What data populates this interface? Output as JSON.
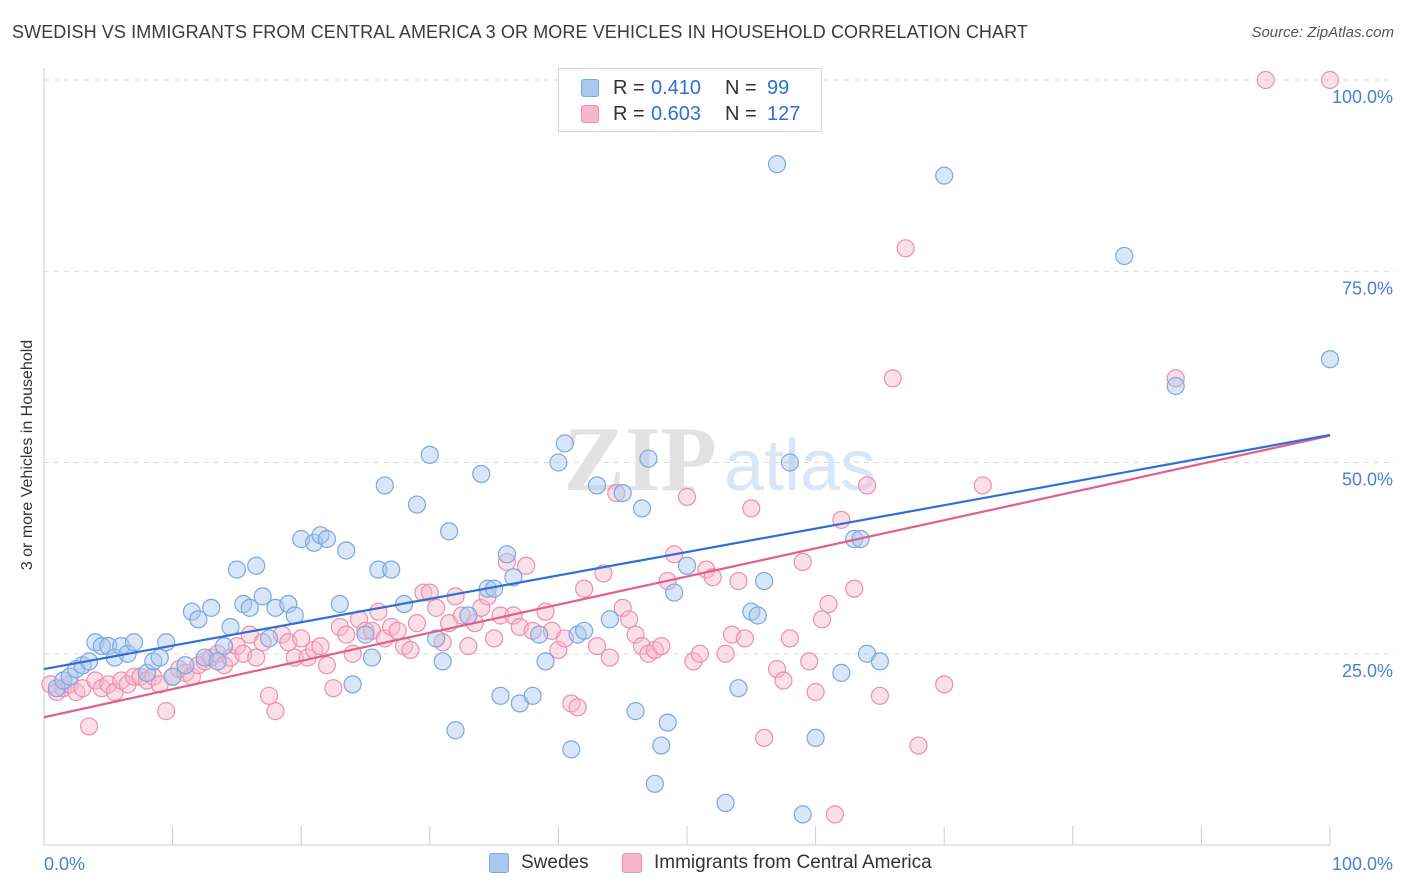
{
  "title": "SWEDISH VS IMMIGRANTS FROM CENTRAL AMERICA 3 OR MORE VEHICLES IN HOUSEHOLD CORRELATION CHART",
  "source": "Source: ZipAtlas.com",
  "watermark": {
    "zip": "ZIP",
    "atlas": "atlas"
  },
  "legend_top": [
    {
      "r_label": "R =",
      "r_value": "0.410",
      "n_label": "N =",
      "n_value": "99"
    },
    {
      "r_label": "R =",
      "r_value": "0.603",
      "n_label": "N =",
      "n_value": "127"
    }
  ],
  "legend_bottom": [
    "Swedes",
    "Immigrants from Central America"
  ],
  "colors": {
    "swedes_fill": "#a9c8f0",
    "swedes_stroke": "#7aa8e0",
    "swedes_line": "#2f6fd6",
    "central_fill": "#f6b8cc",
    "central_stroke": "#ee8fad",
    "central_line": "#e0608a",
    "tick_text": "#4a7fd4",
    "grid": "#d8d8d8"
  },
  "chart_data": {
    "type": "scatter",
    "title": "SWEDISH VS IMMIGRANTS FROM CENTRAL AMERICA 3 OR MORE VEHICLES IN HOUSEHOLD CORRELATION CHART",
    "xlabel": "",
    "ylabel": "3 or more Vehicles in Household",
    "x_tick_labels": [
      "0.0%",
      "100.0%"
    ],
    "y_tick_labels": [
      "25.0%",
      "50.0%",
      "75.0%",
      "100.0%"
    ],
    "xlim": [
      0,
      100
    ],
    "ylim": [
      0,
      100
    ],
    "grid": true,
    "legend_position": "top-center",
    "series": [
      {
        "name": "Swedes",
        "r": 0.41,
        "n": 99,
        "trend": {
          "x": [
            0,
            100
          ],
          "y": [
            23.0,
            53.6
          ]
        },
        "points": [
          [
            1,
            20.5
          ],
          [
            1.5,
            21.5
          ],
          [
            2,
            22
          ],
          [
            2.5,
            23
          ],
          [
            3,
            23.5
          ],
          [
            3.5,
            24
          ],
          [
            4,
            26.5
          ],
          [
            4.5,
            26
          ],
          [
            5,
            26
          ],
          [
            5.5,
            24.5
          ],
          [
            6,
            26
          ],
          [
            6.5,
            25
          ],
          [
            7,
            26.5
          ],
          [
            8,
            22.5
          ],
          [
            8.5,
            24
          ],
          [
            9,
            24.5
          ],
          [
            9.5,
            26.5
          ],
          [
            10,
            22
          ],
          [
            11,
            23.5
          ],
          [
            11.5,
            30.5
          ],
          [
            12,
            29.5
          ],
          [
            12.5,
            24.5
          ],
          [
            13,
            31
          ],
          [
            13.5,
            24
          ],
          [
            14,
            26
          ],
          [
            14.5,
            28.5
          ],
          [
            15,
            36
          ],
          [
            15.5,
            31.5
          ],
          [
            16,
            31
          ],
          [
            16.5,
            36.5
          ],
          [
            17,
            32.5
          ],
          [
            17.5,
            27
          ],
          [
            18,
            31
          ],
          [
            19,
            31.5
          ],
          [
            19.5,
            30
          ],
          [
            20,
            40
          ],
          [
            21,
            39.5
          ],
          [
            21.5,
            40.5
          ],
          [
            22,
            40
          ],
          [
            23,
            31.5
          ],
          [
            23.5,
            38.5
          ],
          [
            24,
            21
          ],
          [
            25,
            27.5
          ],
          [
            25.5,
            24.5
          ],
          [
            26,
            36
          ],
          [
            26.5,
            47
          ],
          [
            27,
            36
          ],
          [
            28,
            31.5
          ],
          [
            29,
            44.5
          ],
          [
            30,
            51
          ],
          [
            30.5,
            27
          ],
          [
            31,
            24
          ],
          [
            31.5,
            41
          ],
          [
            32,
            15
          ],
          [
            33,
            30
          ],
          [
            34,
            48.5
          ],
          [
            34.5,
            33.5
          ],
          [
            35,
            33.5
          ],
          [
            35.5,
            19.5
          ],
          [
            36,
            38
          ],
          [
            36.5,
            35
          ],
          [
            37,
            18.5
          ],
          [
            38,
            19.5
          ],
          [
            38.5,
            27.5
          ],
          [
            39,
            24
          ],
          [
            40,
            50
          ],
          [
            40.5,
            52.5
          ],
          [
            41,
            12.5
          ],
          [
            41.5,
            27.5
          ],
          [
            42,
            28
          ],
          [
            43,
            47
          ],
          [
            44,
            29.5
          ],
          [
            45,
            46
          ],
          [
            46,
            17.5
          ],
          [
            46.5,
            44
          ],
          [
            47,
            50.5
          ],
          [
            47.5,
            8
          ],
          [
            48,
            13
          ],
          [
            48.5,
            16
          ],
          [
            49,
            33
          ],
          [
            50,
            36.5
          ],
          [
            53,
            5.5
          ],
          [
            54,
            20.5
          ],
          [
            55,
            30.5
          ],
          [
            55.5,
            30
          ],
          [
            56,
            34.5
          ],
          [
            57,
            89
          ],
          [
            58,
            50
          ],
          [
            59,
            4
          ],
          [
            60,
            14
          ],
          [
            62,
            22.5
          ],
          [
            63,
            40
          ],
          [
            64,
            25
          ],
          [
            65,
            24
          ],
          [
            63.5,
            40
          ],
          [
            70,
            87.5
          ],
          [
            84,
            77
          ],
          [
            88,
            60
          ],
          [
            100,
            63.5
          ]
        ]
      },
      {
        "name": "Immigrants from Central America",
        "r": 0.603,
        "n": 127,
        "trend": {
          "x": [
            0,
            100
          ],
          "y": [
            16.7,
            53.5
          ]
        },
        "points": [
          [
            0.5,
            21
          ],
          [
            1,
            20
          ],
          [
            1.5,
            20.5
          ],
          [
            2,
            21
          ],
          [
            2.5,
            20
          ],
          [
            3,
            20.5
          ],
          [
            3.5,
            15.5
          ],
          [
            4,
            21.5
          ],
          [
            4.5,
            20.5
          ],
          [
            5,
            21
          ],
          [
            5.5,
            20
          ],
          [
            6,
            21.5
          ],
          [
            6.5,
            21
          ],
          [
            7,
            22
          ],
          [
            7.5,
            22
          ],
          [
            8,
            21.5
          ],
          [
            8.5,
            22
          ],
          [
            9,
            21
          ],
          [
            9.5,
            17.5
          ],
          [
            10,
            22
          ],
          [
            10.5,
            23
          ],
          [
            11,
            22.5
          ],
          [
            11.5,
            22
          ],
          [
            12,
            23.5
          ],
          [
            12.5,
            24
          ],
          [
            13,
            24.5
          ],
          [
            13.5,
            25
          ],
          [
            14,
            23.5
          ],
          [
            14.5,
            24.5
          ],
          [
            15,
            26
          ],
          [
            15.5,
            25
          ],
          [
            16,
            27.5
          ],
          [
            16.5,
            24.5
          ],
          [
            17,
            26.5
          ],
          [
            17.5,
            19.5
          ],
          [
            18,
            17.5
          ],
          [
            18.5,
            27.5
          ],
          [
            19,
            26.5
          ],
          [
            19.5,
            24.5
          ],
          [
            20,
            27
          ],
          [
            20.5,
            24.5
          ],
          [
            21,
            25.5
          ],
          [
            21.5,
            26
          ],
          [
            22,
            23.5
          ],
          [
            22.5,
            20.5
          ],
          [
            23,
            28.5
          ],
          [
            23.5,
            27.5
          ],
          [
            24,
            25
          ],
          [
            24.5,
            29.5
          ],
          [
            25,
            28
          ],
          [
            25.5,
            28
          ],
          [
            26,
            30.5
          ],
          [
            26.5,
            27
          ],
          [
            27,
            28.5
          ],
          [
            27.5,
            28
          ],
          [
            28,
            26
          ],
          [
            28.5,
            25.5
          ],
          [
            29,
            29
          ],
          [
            29.5,
            33
          ],
          [
            30,
            33
          ],
          [
            30.5,
            31
          ],
          [
            31,
            26.5
          ],
          [
            31.5,
            29
          ],
          [
            32,
            32.5
          ],
          [
            32.5,
            30
          ],
          [
            33,
            26
          ],
          [
            33.5,
            29
          ],
          [
            34,
            31
          ],
          [
            34.5,
            32.5
          ],
          [
            35,
            27
          ],
          [
            35.5,
            30
          ],
          [
            36,
            37
          ],
          [
            36.5,
            30
          ],
          [
            37,
            28.5
          ],
          [
            37.5,
            36.5
          ],
          [
            38,
            28
          ],
          [
            39,
            30.5
          ],
          [
            39.5,
            28
          ],
          [
            40,
            25.5
          ],
          [
            40.5,
            27
          ],
          [
            41,
            18.5
          ],
          [
            41.5,
            18
          ],
          [
            42,
            33.5
          ],
          [
            43,
            26
          ],
          [
            43.5,
            35.5
          ],
          [
            44,
            24.5
          ],
          [
            44.5,
            46
          ],
          [
            45,
            31
          ],
          [
            45.5,
            29.5
          ],
          [
            46,
            27.5
          ],
          [
            46.5,
            26
          ],
          [
            47,
            25
          ],
          [
            47.5,
            25.5
          ],
          [
            48,
            26
          ],
          [
            48.5,
            34.5
          ],
          [
            49,
            38
          ],
          [
            50,
            45.5
          ],
          [
            50.5,
            24
          ],
          [
            51,
            25
          ],
          [
            51.5,
            36
          ],
          [
            52,
            35
          ],
          [
            53,
            25
          ],
          [
            53.5,
            27.5
          ],
          [
            54,
            34.5
          ],
          [
            54.5,
            27
          ],
          [
            55,
            44
          ],
          [
            56,
            14
          ],
          [
            57,
            23
          ],
          [
            57.5,
            21.5
          ],
          [
            58,
            27
          ],
          [
            59,
            37
          ],
          [
            59.5,
            24
          ],
          [
            60,
            20
          ],
          [
            60.5,
            29.5
          ],
          [
            61,
            31.5
          ],
          [
            61.5,
            4
          ],
          [
            62,
            42.5
          ],
          [
            63,
            33.5
          ],
          [
            64,
            47
          ],
          [
            65,
            19.5
          ],
          [
            66,
            61
          ],
          [
            67,
            78
          ],
          [
            68,
            13
          ],
          [
            70,
            21
          ],
          [
            73,
            47
          ],
          [
            88,
            61
          ],
          [
            95,
            100
          ],
          [
            100,
            100
          ]
        ]
      }
    ]
  }
}
